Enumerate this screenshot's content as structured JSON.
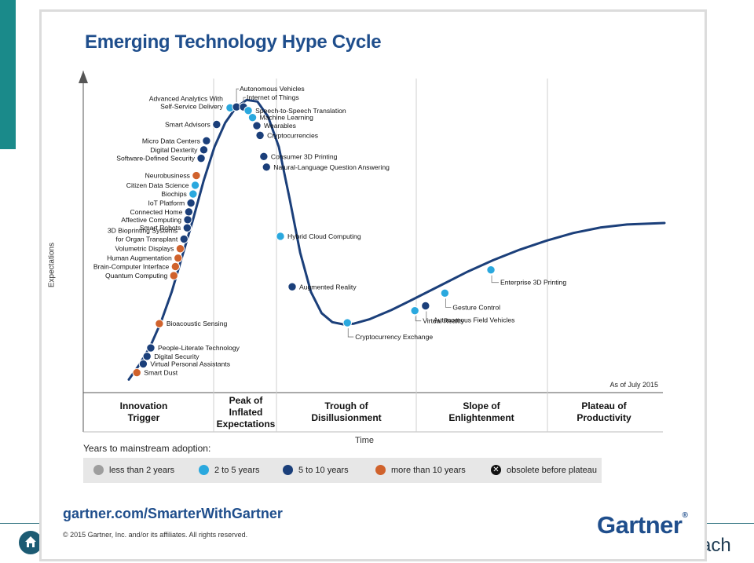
{
  "page": {
    "background_word": "ach",
    "title": "Emerging Technology Hype Cycle",
    "ylabel": "Expectations",
    "xlabel": "Time",
    "as_of": "As of July 2015",
    "legend_title": "Years to mainstream adoption:",
    "url": "gartner.com/SmarterWithGartner",
    "copyright": "© 2015 Gartner, Inc. and/or its affiliates. All rights reserved.",
    "logo": "Gartner",
    "logo_mark": "®"
  },
  "colors": {
    "accent_teal": "#1a8a8a",
    "brand_blue": "#1f4e8c",
    "less_than_2": "#9e9e9e",
    "two_to_five": "#2aa8de",
    "five_to_ten": "#1b3f7a",
    "more_than_ten": "#d0622c",
    "obsolete": "#111111",
    "curve": "#1b3f7a"
  },
  "phases": [
    {
      "line1": "Innovation",
      "line2": "Trigger"
    },
    {
      "line1": "Peak of",
      "line2": "Inflated",
      "line3": "Expectations"
    },
    {
      "line1": "Trough of",
      "line2": "Disillusionment"
    },
    {
      "line1": "Slope of",
      "line2": "Enlightenment"
    },
    {
      "line1": "Plateau of",
      "line2": "Productivity"
    }
  ],
  "legend": [
    {
      "label": "less than 2 years",
      "category": "less_than_2",
      "icon": "grey-dot"
    },
    {
      "label": "2 to 5 years",
      "category": "two_to_five",
      "icon": "light-blue-dot"
    },
    {
      "label": "5 to 10 years",
      "category": "five_to_ten",
      "icon": "dark-blue-dot"
    },
    {
      "label": "more than 10 years",
      "category": "more_than_ten",
      "icon": "orange-dot"
    },
    {
      "label": "obsolete before plateau",
      "category": "obsolete",
      "icon": "x-dot"
    }
  ],
  "chart_data": {
    "type": "scatter",
    "title": "Emerging Technology Hype Cycle",
    "xlabel": "Time",
    "ylabel": "Expectations",
    "note": "As of July 2015",
    "grid": "vertical phase dividers",
    "x_range": [
      0,
      100
    ],
    "y_range": [
      0,
      100
    ],
    "curve": [
      [
        0,
        3
      ],
      [
        2,
        8
      ],
      [
        4,
        14
      ],
      [
        6,
        22
      ],
      [
        8,
        32
      ],
      [
        10,
        44
      ],
      [
        12,
        56
      ],
      [
        14,
        69
      ],
      [
        16,
        80
      ],
      [
        18,
        88
      ],
      [
        20,
        93
      ],
      [
        22,
        95.5
      ],
      [
        24,
        95
      ],
      [
        26,
        90
      ],
      [
        28,
        80
      ],
      [
        30,
        63
      ],
      [
        32,
        45
      ],
      [
        34,
        32
      ],
      [
        36,
        25
      ],
      [
        38,
        22
      ],
      [
        40,
        21.3
      ],
      [
        42,
        21.5
      ],
      [
        45,
        23
      ],
      [
        49,
        26
      ],
      [
        53,
        29.5
      ],
      [
        58,
        34
      ],
      [
        63,
        38.5
      ],
      [
        68,
        42.5
      ],
      [
        73,
        46
      ],
      [
        78,
        49
      ],
      [
        83,
        51.5
      ],
      [
        88,
        53.3
      ],
      [
        93,
        54.3
      ],
      [
        100,
        54.8
      ]
    ],
    "points": [
      {
        "label": "Smart Dust",
        "x": 1.5,
        "y": 5.3,
        "category": "more_than_ten"
      },
      {
        "label": "Virtual Personal Assistants",
        "x": 2.7,
        "y": 8.2,
        "category": "five_to_ten"
      },
      {
        "label": "Digital Security",
        "x": 3.4,
        "y": 10.7,
        "category": "five_to_ten"
      },
      {
        "label": "People-Literate Technology",
        "x": 4.1,
        "y": 13.5,
        "category": "five_to_ten"
      },
      {
        "label": "Bioacoustic Sensing",
        "x": 5.7,
        "y": 21.5,
        "category": "more_than_ten"
      },
      {
        "label": "Quantum Computing",
        "x": 8.4,
        "y": 37.4,
        "category": "more_than_ten"
      },
      {
        "label": "Brain-Computer Interface",
        "x": 8.7,
        "y": 40.4,
        "category": "more_than_ten"
      },
      {
        "label": "Human Augmentation",
        "x": 9.2,
        "y": 43.2,
        "category": "more_than_ten"
      },
      {
        "label": "Volumetric Displays",
        "x": 9.6,
        "y": 46.3,
        "category": "more_than_ten"
      },
      {
        "label": "3D Bioprinting Systems for Organ Transplant",
        "x": 10.3,
        "y": 49.5,
        "category": "five_to_ten"
      },
      {
        "label": "Smart Robots",
        "x": 10.9,
        "y": 53.2,
        "category": "five_to_ten"
      },
      {
        "label": "Affective Computing",
        "x": 11.0,
        "y": 55.9,
        "category": "five_to_ten"
      },
      {
        "label": "Connected Home",
        "x": 11.2,
        "y": 58.5,
        "category": "five_to_ten"
      },
      {
        "label": "IoT Platform",
        "x": 11.6,
        "y": 61.4,
        "category": "five_to_ten"
      },
      {
        "label": "Biochips",
        "x": 12.0,
        "y": 64.4,
        "category": "two_to_five"
      },
      {
        "label": "Citizen Data Science",
        "x": 12.4,
        "y": 67.3,
        "category": "two_to_five"
      },
      {
        "label": "Neurobusiness",
        "x": 12.6,
        "y": 70.5,
        "category": "more_than_ten"
      },
      {
        "label": "Software-Defined Security",
        "x": 13.5,
        "y": 76.2,
        "category": "five_to_ten"
      },
      {
        "label": "Digital Dexterity",
        "x": 14.0,
        "y": 79.0,
        "category": "five_to_ten"
      },
      {
        "label": "Micro Data Centers",
        "x": 14.5,
        "y": 82.0,
        "category": "five_to_ten"
      },
      {
        "label": "Smart Advisors",
        "x": 16.4,
        "y": 87.4,
        "category": "five_to_ten"
      },
      {
        "label": "Advanced Analytics With Self-Service Delivery",
        "x": 18.9,
        "y": 92.9,
        "category": "two_to_five"
      },
      {
        "label": "Autonomous Vehicles",
        "x": 20.1,
        "y": 93.2,
        "category": "five_to_ten"
      },
      {
        "label": "Internet of Things",
        "x": 21.4,
        "y": 93.2,
        "category": "five_to_ten"
      },
      {
        "label": "Speech-to-Speech Translation",
        "x": 22.3,
        "y": 92.0,
        "category": "two_to_five"
      },
      {
        "label": "Machine Learning",
        "x": 23.1,
        "y": 89.7,
        "category": "two_to_five"
      },
      {
        "label": "Wearables",
        "x": 23.9,
        "y": 87.0,
        "category": "five_to_ten"
      },
      {
        "label": "Cryptocurrencies",
        "x": 24.5,
        "y": 83.8,
        "category": "five_to_ten"
      },
      {
        "label": "Consumer 3D Printing",
        "x": 25.2,
        "y": 76.8,
        "category": "five_to_ten"
      },
      {
        "label": "Natural-Language Question Answering",
        "x": 25.7,
        "y": 73.3,
        "category": "five_to_ten"
      },
      {
        "label": "Hybrid Cloud Computing",
        "x": 28.3,
        "y": 50.4,
        "category": "two_to_five"
      },
      {
        "label": "Augmented Reality",
        "x": 30.5,
        "y": 33.7,
        "category": "five_to_ten"
      },
      {
        "label": "Cryptocurrency Exchange",
        "x": 40.8,
        "y": 21.8,
        "category": "two_to_five"
      },
      {
        "label": "Virtual Reality",
        "x": 53.4,
        "y": 25.8,
        "category": "two_to_five"
      },
      {
        "label": "Autonomous Field Vehicles",
        "x": 55.4,
        "y": 27.4,
        "category": "five_to_ten"
      },
      {
        "label": "Gesture Control",
        "x": 59.0,
        "y": 31.6,
        "category": "two_to_five"
      },
      {
        "label": "Enterprise 3D Printing",
        "x": 67.6,
        "y": 39.3,
        "category": "two_to_five"
      }
    ],
    "label_offsets_note": ""
  }
}
